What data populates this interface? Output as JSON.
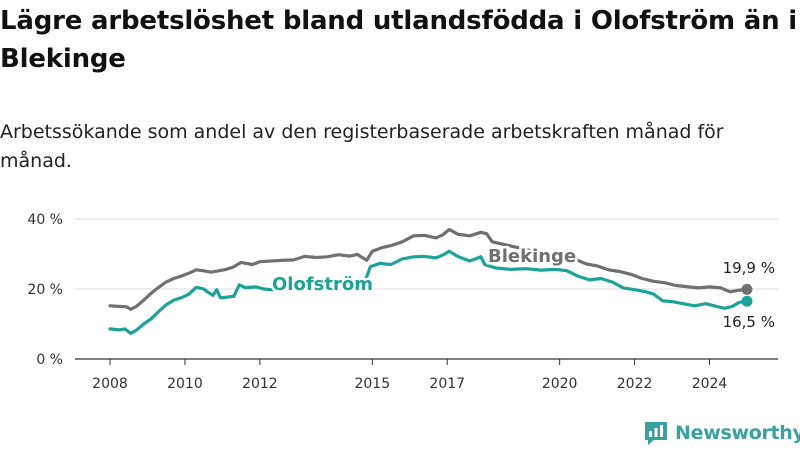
{
  "header": {
    "title": "Lägre arbetslöshet bland utlandsfödda i Olofström än i Blekinge",
    "subtitle": "Arbetssökande som andel av den registerbaserade arbetskraften månad för månad."
  },
  "brand": {
    "name": "Newsworthy",
    "icon": "newsworthy-logo-icon",
    "color": "#3aa0a0"
  },
  "chart_data": {
    "type": "line",
    "title": "Lägre arbetslöshet bland utlandsfödda i Olofström än i Blekinge",
    "subtitle": "Arbetssökande som andel av den registerbaserade arbetskraften månad för månad.",
    "xlabel": "",
    "ylabel": "",
    "xlim": [
      2008,
      2025
    ],
    "ylim": [
      0,
      40
    ],
    "yticks": [
      0,
      20,
      40
    ],
    "yticklabels": [
      "0 %",
      "20 %",
      "40 %"
    ],
    "xticks": [
      2008,
      2010,
      2012,
      2015,
      2017,
      2020,
      2022,
      2024
    ],
    "xticklabels": [
      "2008",
      "2010",
      "2012",
      "2015",
      "2017",
      "2020",
      "2022",
      "2024"
    ],
    "grid": true,
    "legend": "none",
    "series": [
      {
        "name": "Blekinge",
        "color": "#707070",
        "label_color": "#707070",
        "end_label": "19,9 %",
        "points": [
          [
            2008.0,
            15.2
          ],
          [
            2008.3,
            15.0
          ],
          [
            2008.45,
            14.9
          ],
          [
            2008.55,
            14.2
          ],
          [
            2008.7,
            15.0
          ],
          [
            2008.9,
            16.8
          ],
          [
            2009.1,
            18.8
          ],
          [
            2009.3,
            20.5
          ],
          [
            2009.5,
            22.0
          ],
          [
            2009.7,
            23.0
          ],
          [
            2009.9,
            23.7
          ],
          [
            2010.1,
            24.5
          ],
          [
            2010.3,
            25.5
          ],
          [
            2010.5,
            25.2
          ],
          [
            2010.7,
            24.8
          ],
          [
            2010.9,
            25.2
          ],
          [
            2011.1,
            25.6
          ],
          [
            2011.3,
            26.3
          ],
          [
            2011.5,
            27.6
          ],
          [
            2011.8,
            27.0
          ],
          [
            2012.0,
            27.8
          ],
          [
            2012.3,
            28.0
          ],
          [
            2012.6,
            28.2
          ],
          [
            2012.9,
            28.3
          ],
          [
            2013.2,
            29.3
          ],
          [
            2013.5,
            29.0
          ],
          [
            2013.8,
            29.2
          ],
          [
            2014.1,
            29.8
          ],
          [
            2014.4,
            29.4
          ],
          [
            2014.6,
            29.9
          ],
          [
            2014.85,
            28.2
          ],
          [
            2015.0,
            30.8
          ],
          [
            2015.25,
            31.8
          ],
          [
            2015.5,
            32.4
          ],
          [
            2015.8,
            33.5
          ],
          [
            2016.1,
            35.2
          ],
          [
            2016.4,
            35.3
          ],
          [
            2016.7,
            34.6
          ],
          [
            2016.9,
            35.6
          ],
          [
            2017.05,
            37.0
          ],
          [
            2017.3,
            35.6
          ],
          [
            2017.6,
            35.2
          ],
          [
            2017.9,
            36.2
          ],
          [
            2018.05,
            35.8
          ],
          [
            2018.2,
            33.5
          ],
          [
            2019.85,
            29.5
          ],
          [
            2020.1,
            29.0
          ],
          [
            2020.4,
            28.6
          ],
          [
            2020.7,
            27.2
          ],
          [
            2021.0,
            26.6
          ],
          [
            2021.3,
            25.5
          ],
          [
            2021.6,
            25.0
          ],
          [
            2021.9,
            24.2
          ],
          [
            2022.2,
            23.0
          ],
          [
            2022.5,
            22.2
          ],
          [
            2022.8,
            21.8
          ],
          [
            2023.1,
            21.0
          ],
          [
            2023.4,
            20.7
          ],
          [
            2023.7,
            20.3
          ],
          [
            2024.0,
            20.6
          ],
          [
            2024.3,
            20.3
          ],
          [
            2024.55,
            19.2
          ],
          [
            2024.75,
            19.6
          ],
          [
            2025.0,
            19.9
          ]
        ]
      },
      {
        "name": "Olofström",
        "color": "#1aa396",
        "label_color": "#1aa396",
        "end_label": "16,5 %",
        "points": [
          [
            2008.0,
            8.6
          ],
          [
            2008.25,
            8.3
          ],
          [
            2008.4,
            8.6
          ],
          [
            2008.55,
            7.3
          ],
          [
            2008.7,
            8.2
          ],
          [
            2008.9,
            10.0
          ],
          [
            2009.1,
            11.5
          ],
          [
            2009.3,
            13.6
          ],
          [
            2009.5,
            15.5
          ],
          [
            2009.7,
            16.8
          ],
          [
            2009.9,
            17.5
          ],
          [
            2010.1,
            18.5
          ],
          [
            2010.3,
            20.5
          ],
          [
            2010.5,
            20.0
          ],
          [
            2010.6,
            19.2
          ],
          [
            2010.75,
            18.2
          ],
          [
            2010.85,
            19.8
          ],
          [
            2010.95,
            17.5
          ],
          [
            2011.3,
            17.9
          ],
          [
            2011.45,
            21.2
          ],
          [
            2011.6,
            20.4
          ],
          [
            2011.9,
            20.6
          ],
          [
            2012.1,
            20.0
          ],
          [
            2012.3,
            19.8
          ],
          [
            2012.5,
            20.0
          ],
          [
            2014.8,
            22.0
          ],
          [
            2014.95,
            26.4
          ],
          [
            2015.2,
            27.3
          ],
          [
            2015.5,
            27.0
          ],
          [
            2015.8,
            28.6
          ],
          [
            2016.1,
            29.2
          ],
          [
            2016.4,
            29.3
          ],
          [
            2016.7,
            28.9
          ],
          [
            2016.9,
            29.8
          ],
          [
            2017.05,
            30.8
          ],
          [
            2017.3,
            29.2
          ],
          [
            2017.6,
            28.0
          ],
          [
            2017.9,
            29.2
          ],
          [
            2018.0,
            27.0
          ],
          [
            2018.3,
            26.0
          ],
          [
            2018.7,
            25.6
          ],
          [
            2019.1,
            25.8
          ],
          [
            2019.5,
            25.4
          ],
          [
            2019.9,
            25.6
          ],
          [
            2020.2,
            25.2
          ],
          [
            2020.5,
            23.6
          ],
          [
            2020.8,
            22.6
          ],
          [
            2021.1,
            23.0
          ],
          [
            2021.4,
            22.0
          ],
          [
            2021.7,
            20.3
          ],
          [
            2022.0,
            19.8
          ],
          [
            2022.3,
            19.2
          ],
          [
            2022.5,
            18.6
          ],
          [
            2022.75,
            16.6
          ],
          [
            2023.0,
            16.4
          ],
          [
            2023.3,
            15.8
          ],
          [
            2023.6,
            15.2
          ],
          [
            2023.9,
            15.8
          ],
          [
            2024.2,
            15.0
          ],
          [
            2024.4,
            14.5
          ],
          [
            2024.6,
            15.0
          ],
          [
            2024.8,
            16.2
          ],
          [
            2025.0,
            16.5
          ]
        ]
      }
    ]
  }
}
